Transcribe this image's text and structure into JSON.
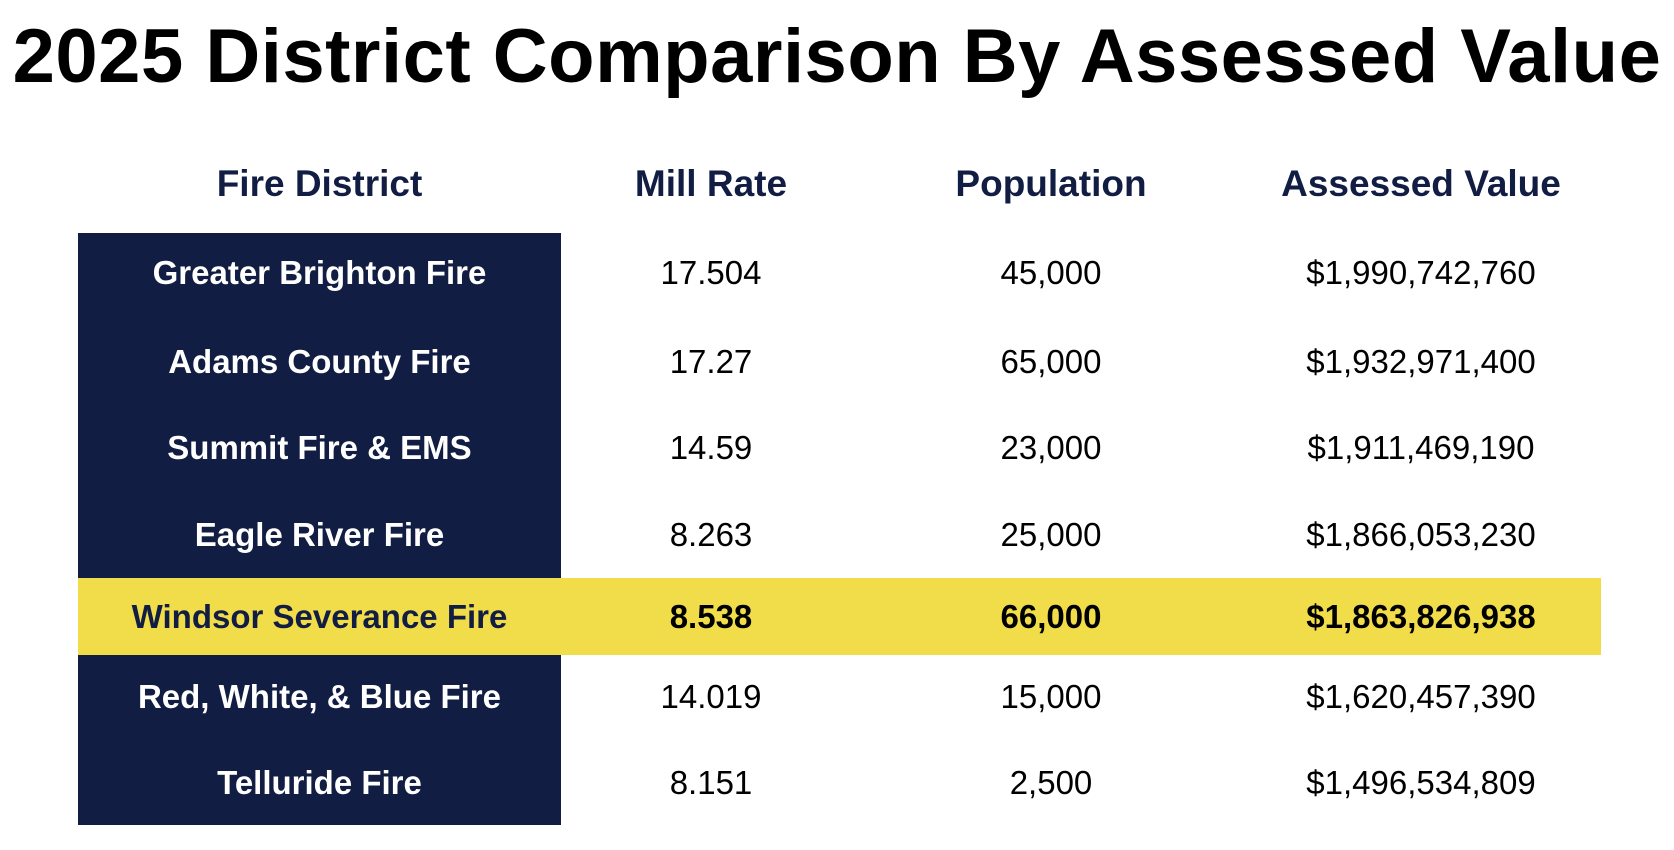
{
  "title": "2025 District Comparison By Assessed Value",
  "colors": {
    "navy": "#111d42",
    "highlight": "#f1dc4a"
  },
  "table": {
    "headers": [
      "Fire District",
      "Mill Rate",
      "Population",
      "Assessed Value"
    ],
    "rows": [
      {
        "district": "Greater Brighton Fire",
        "mill_rate": "17.504",
        "population": "45,000",
        "assessed_value": "$1,990,742,760",
        "highlighted": false
      },
      {
        "district": "Adams County Fire",
        "mill_rate": "17.27",
        "population": "65,000",
        "assessed_value": "$1,932,971,400",
        "highlighted": false
      },
      {
        "district": "Summit Fire & EMS",
        "mill_rate": "14.59",
        "population": "23,000",
        "assessed_value": "$1,911,469,190",
        "highlighted": false
      },
      {
        "district": "Eagle River Fire",
        "mill_rate": "8.263",
        "population": "25,000",
        "assessed_value": "$1,866,053,230",
        "highlighted": false
      },
      {
        "district": "Windsor Severance Fire",
        "mill_rate": "8.538",
        "population": "66,000",
        "assessed_value": "$1,863,826,938",
        "highlighted": true
      },
      {
        "district": "Red, White, & Blue Fire",
        "mill_rate": "14.019",
        "population": "15,000",
        "assessed_value": "$1,620,457,390",
        "highlighted": false
      },
      {
        "district": "Telluride Fire",
        "mill_rate": "8.151",
        "population": "2,500",
        "assessed_value": "$1,496,534,809",
        "highlighted": false
      }
    ]
  }
}
